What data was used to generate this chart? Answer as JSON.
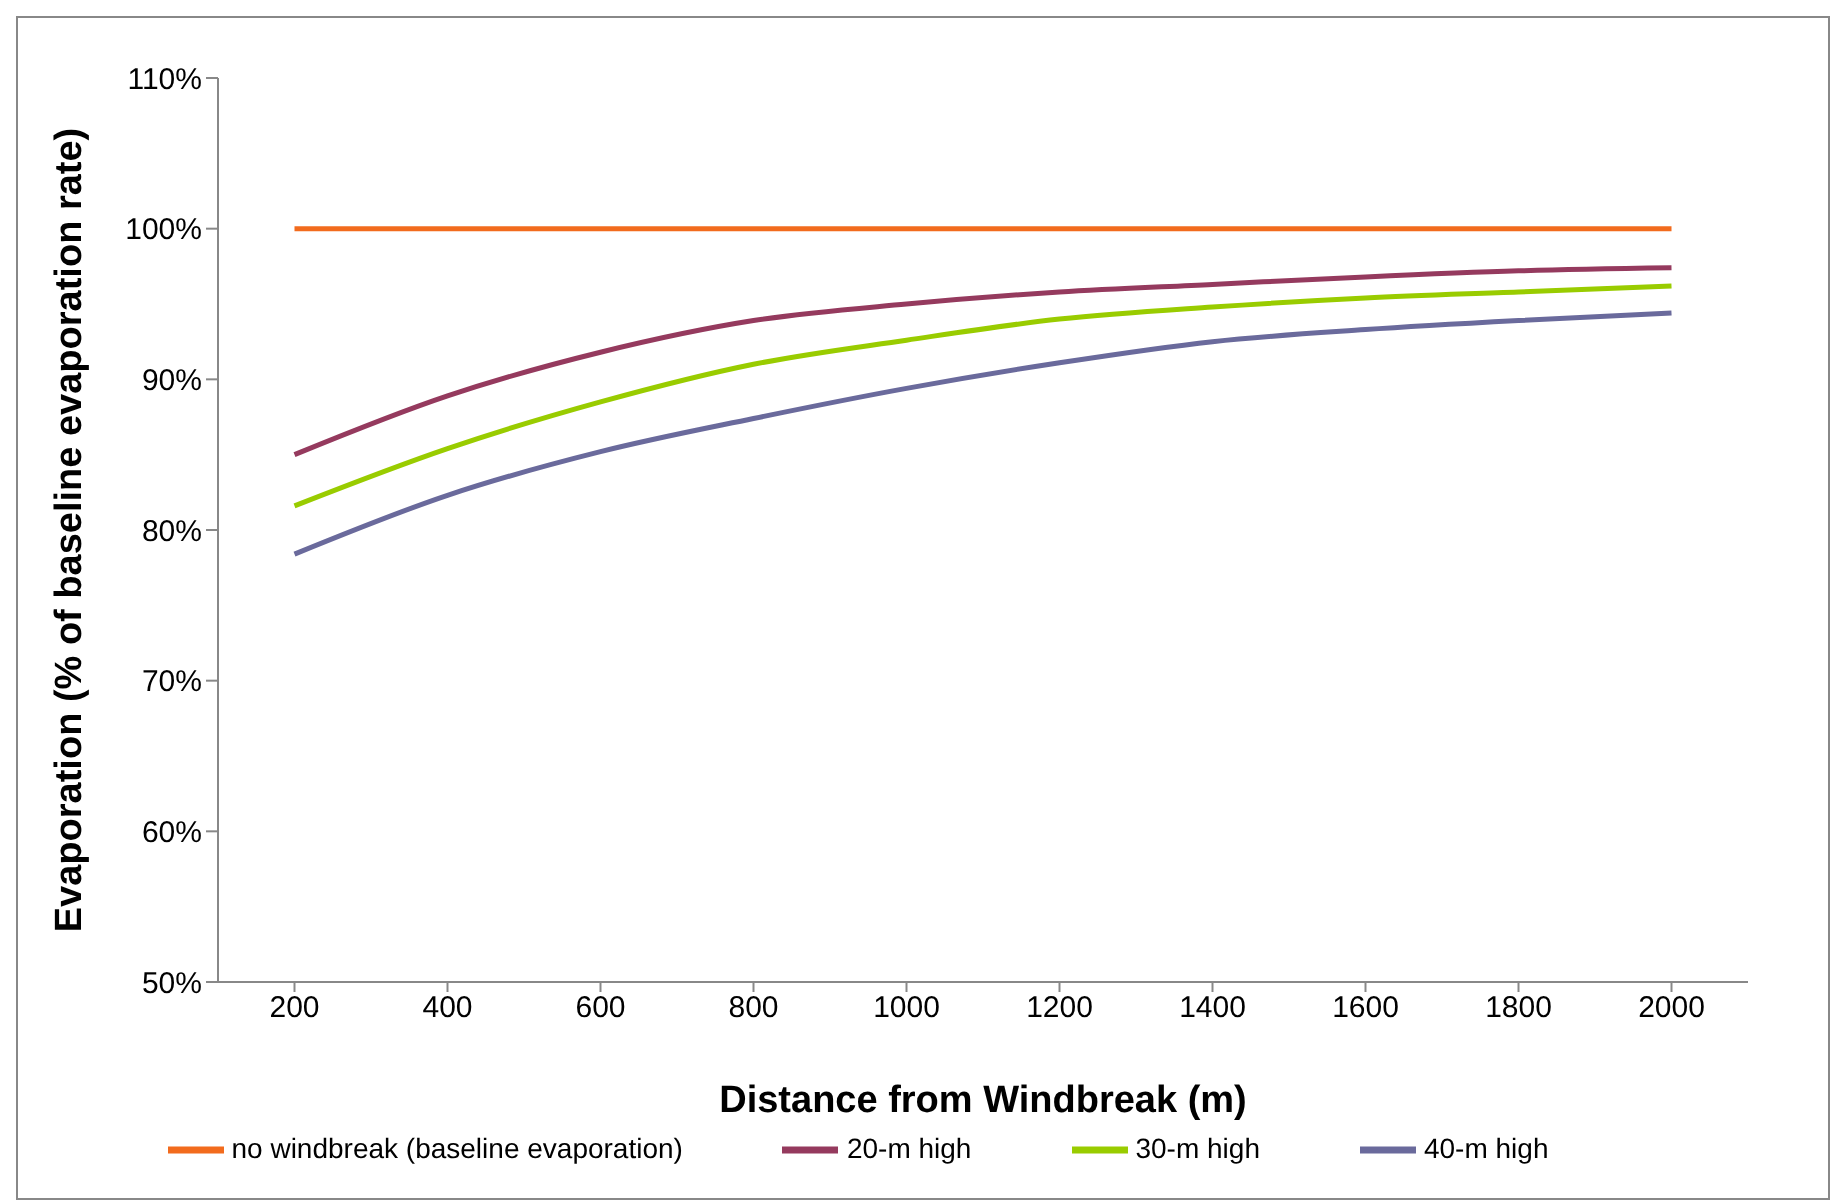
{
  "chart_data": {
    "type": "line",
    "xlabel": "Distance from Windbreak (m)",
    "ylabel": "Evaporation (% of baseline evaporation rate)",
    "x": [
      200,
      400,
      600,
      800,
      1000,
      1200,
      1400,
      1600,
      1800,
      2000
    ],
    "xlim": [
      100,
      2100
    ],
    "xticks": [
      200,
      400,
      600,
      800,
      1000,
      1200,
      1400,
      1600,
      1800,
      2000
    ],
    "ylim": [
      50,
      110
    ],
    "yticks": [
      {
        "value": 50,
        "label": "50%"
      },
      {
        "value": 60,
        "label": "60%"
      },
      {
        "value": 70,
        "label": "70%"
      },
      {
        "value": 80,
        "label": "80%"
      },
      {
        "value": 90,
        "label": "90%"
      },
      {
        "value": 100,
        "label": "100%"
      },
      {
        "value": 110,
        "label": "110%"
      }
    ],
    "grid": false,
    "legend": "bottom",
    "marker": "none",
    "line_style": "solid",
    "series": [
      {
        "name": "no windbreak (baseline evaporation)",
        "color": "#f26b1d",
        "values": [
          100,
          100,
          100,
          100,
          100,
          100,
          100,
          100,
          100,
          100
        ]
      },
      {
        "name": "20-m high",
        "color": "#953a5e",
        "values": [
          85.0,
          88.9,
          91.8,
          93.9,
          95.0,
          95.8,
          96.3,
          96.8,
          97.2,
          97.4
        ]
      },
      {
        "name": "30-m high",
        "color": "#99cc00",
        "values": [
          81.6,
          85.4,
          88.5,
          91.0,
          92.6,
          94.0,
          94.8,
          95.4,
          95.8,
          96.2
        ]
      },
      {
        "name": "40-m high",
        "color": "#6a6a9c",
        "values": [
          78.4,
          82.3,
          85.2,
          87.4,
          89.4,
          91.1,
          92.5,
          93.3,
          93.9,
          94.4
        ]
      }
    ]
  }
}
